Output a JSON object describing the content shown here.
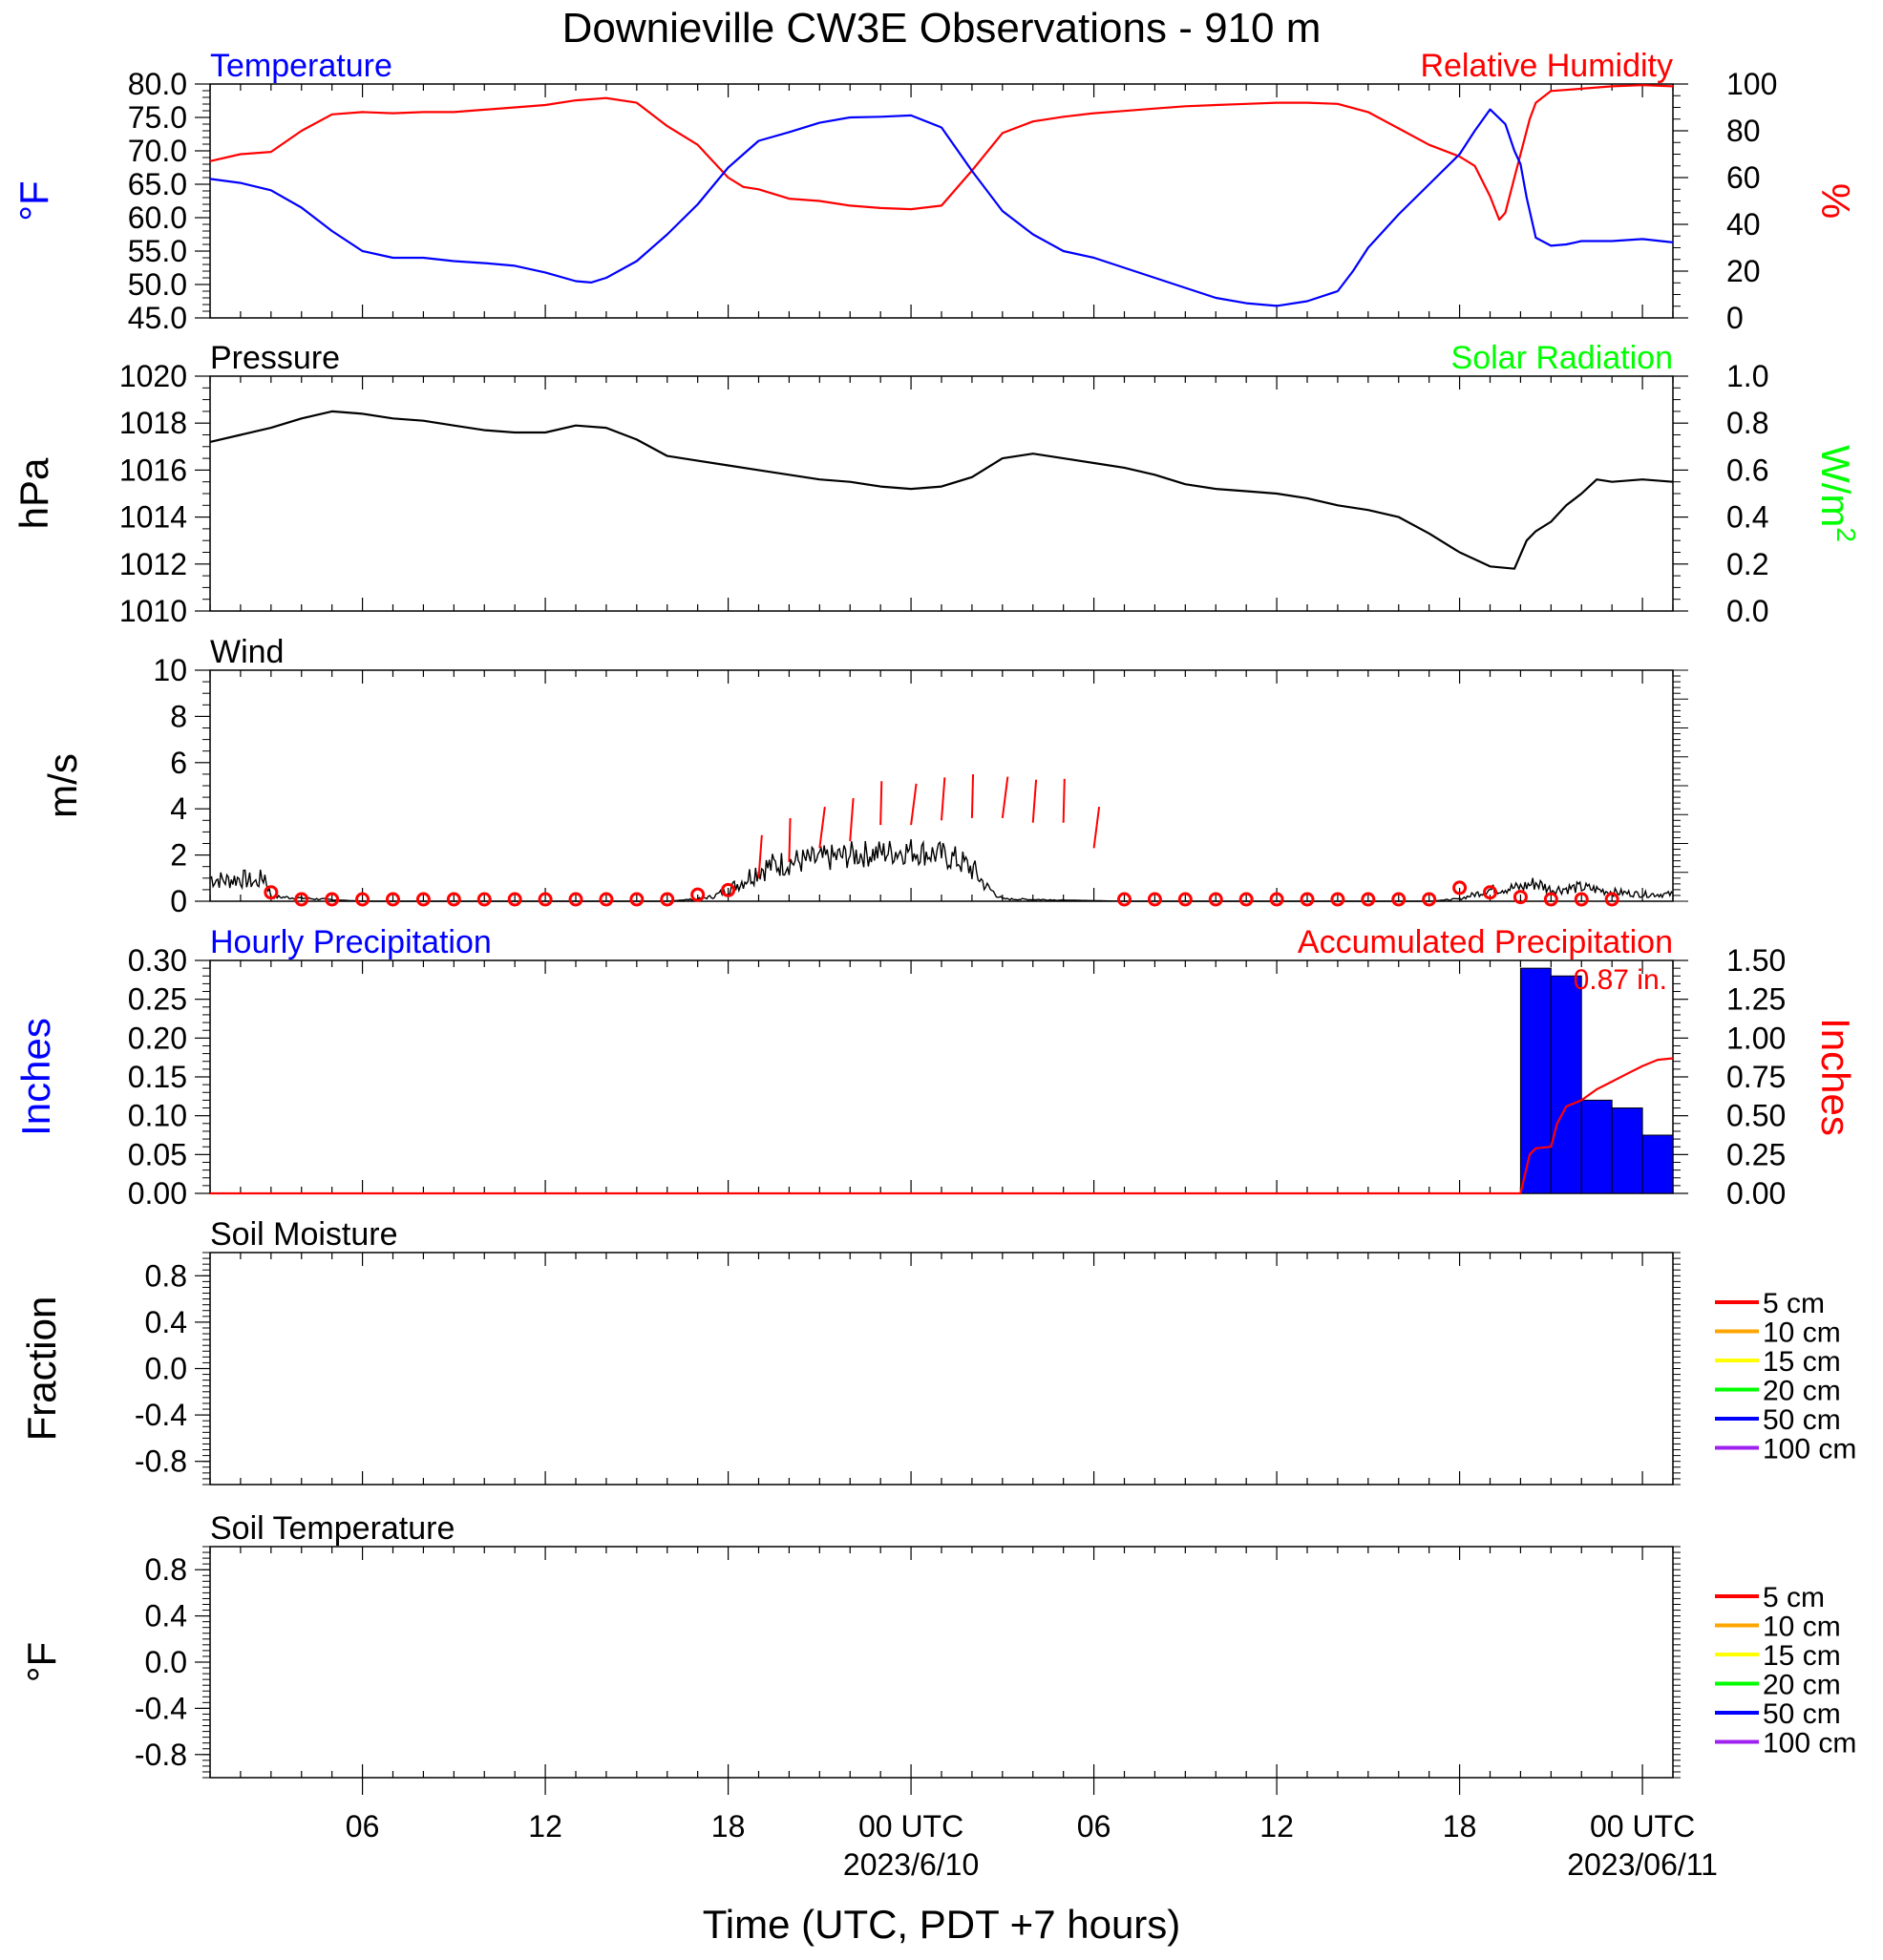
{
  "title": "Downieville CW3E Observations - 910 m",
  "xlabel": "Time (UTC, PDT +7 hours)",
  "x_axis": {
    "range_hours": [
      0,
      48
    ],
    "ticks": [
      {
        "t": 5,
        "label": "06",
        "sub": ""
      },
      {
        "t": 11,
        "label": "12",
        "sub": ""
      },
      {
        "t": 17,
        "label": "18",
        "sub": ""
      },
      {
        "t": 23,
        "label": "00 UTC",
        "sub": "2023/6/10"
      },
      {
        "t": 29,
        "label": "06",
        "sub": ""
      },
      {
        "t": 35,
        "label": "12",
        "sub": ""
      },
      {
        "t": 41,
        "label": "18",
        "sub": ""
      },
      {
        "t": 47,
        "label": "00 UTC",
        "sub": "2023/06/11"
      }
    ]
  },
  "colors": {
    "temperature": "#0000ff",
    "humidity": "#ff0000",
    "pressure": "#000000",
    "solar": "#00ff00",
    "wind": "#000000",
    "wind_marker": "#ff0000",
    "hourly_precip": "#0000ff",
    "accum_precip": "#ff0000"
  },
  "chart_data": [
    {
      "type": "line",
      "panel": "temperature-humidity",
      "left_title": "Temperature",
      "right_title": "Relative Humidity",
      "ylabel_left": "°F",
      "ylabel_right": "%",
      "ylim_left": [
        45,
        80
      ],
      "ylim_right": [
        0,
        100
      ],
      "yticks_left": [
        "80.0",
        "75.0",
        "70.0",
        "65.0",
        "60.0",
        "55.0",
        "50.0",
        "45.0"
      ],
      "yticks_right": [
        "100",
        "80",
        "60",
        "40",
        "20",
        "0"
      ],
      "series": [
        {
          "name": "Temperature",
          "axis": "left",
          "x": [
            0,
            1,
            2,
            3,
            4,
            5,
            6,
            7,
            8,
            9,
            10,
            11,
            12,
            12.5,
            13,
            14,
            15,
            16,
            17,
            17.5,
            18,
            19,
            20,
            21,
            22,
            23,
            24,
            25,
            26,
            27,
            28,
            29,
            30,
            31,
            32,
            33,
            34,
            35,
            36,
            37,
            37.5,
            38,
            39,
            40,
            41,
            41.5,
            42,
            42.5,
            42.8,
            43,
            43.2,
            43.5,
            44,
            44.5,
            45,
            46,
            47,
            48
          ],
          "y": [
            65.8,
            65.2,
            64.1,
            61.5,
            58.0,
            55.0,
            54.0,
            54.0,
            53.5,
            53.2,
            52.8,
            51.8,
            50.5,
            50.3,
            51.0,
            53.5,
            57.5,
            62.0,
            67.5,
            69.5,
            71.5,
            72.8,
            74.2,
            75.0,
            75.1,
            75.3,
            73.5,
            67.0,
            61.0,
            57.5,
            55.0,
            54.0,
            52.5,
            51.0,
            49.5,
            48.0,
            47.2,
            46.8,
            47.5,
            49.0,
            52.0,
            55.5,
            60.5,
            65.0,
            69.5,
            73.0,
            76.2,
            74.0,
            70.0,
            68.0,
            63.0,
            57.0,
            55.8,
            56.0,
            56.5,
            56.5,
            56.8,
            56.3
          ]
        },
        {
          "name": "Relative Humidity",
          "axis": "right",
          "x": [
            0,
            1,
            2,
            3,
            4,
            5,
            6,
            7,
            8,
            9,
            10,
            11,
            12,
            13,
            14,
            15,
            16,
            17,
            17.5,
            18,
            19,
            20,
            21,
            22,
            23,
            24,
            25,
            26,
            27,
            28,
            29,
            30,
            31,
            32,
            33,
            34,
            35,
            36,
            37,
            38,
            39,
            40,
            41,
            41.5,
            42,
            42.3,
            42.5,
            42.8,
            43,
            43.3,
            43.5,
            44,
            45,
            46,
            47,
            48
          ],
          "y": [
            67,
            70,
            71,
            80,
            87,
            88,
            87.5,
            88,
            88,
            89,
            90,
            91,
            93,
            94,
            92,
            82,
            74,
            60,
            56,
            55,
            51,
            50,
            48,
            47,
            46.5,
            48,
            63,
            79,
            84,
            86,
            87.5,
            88.5,
            89.5,
            90.5,
            91,
            91.5,
            92,
            92,
            91.5,
            88,
            81,
            74,
            69,
            65,
            52,
            42,
            45,
            60,
            70,
            85,
            92,
            97,
            98,
            99,
            99.5,
            99
          ]
        }
      ]
    },
    {
      "type": "line",
      "panel": "pressure",
      "left_title": "Pressure",
      "right_title": "Solar Radiation",
      "ylabel_left": "hPa",
      "ylabel_right": "W/m",
      "ylabel_right_sup": "2",
      "ylim_left": [
        1010,
        1020
      ],
      "ylim_right": [
        0,
        1
      ],
      "yticks_left": [
        "1020",
        "1018",
        "1016",
        "1014",
        "1012",
        "1010"
      ],
      "yticks_right": [
        "1.0",
        "0.8",
        "0.6",
        "0.4",
        "0.2",
        "0.0"
      ],
      "series": [
        {
          "name": "Pressure",
          "axis": "left",
          "x": [
            0,
            1,
            2,
            3,
            4,
            5,
            6,
            7,
            8,
            9,
            10,
            11,
            12,
            13,
            14,
            15,
            16,
            17,
            18,
            19,
            20,
            21,
            22,
            23,
            24,
            25,
            26,
            27,
            28,
            29,
            30,
            31,
            32,
            33,
            34,
            35,
            36,
            37,
            38,
            39,
            40,
            41,
            42,
            42.8,
            43.2,
            43.5,
            44,
            44.5,
            45,
            45.5,
            46,
            47,
            48
          ],
          "y": [
            1017.2,
            1017.5,
            1017.8,
            1018.2,
            1018.5,
            1018.4,
            1018.2,
            1018.1,
            1017.9,
            1017.7,
            1017.6,
            1017.6,
            1017.9,
            1017.8,
            1017.3,
            1016.6,
            1016.4,
            1016.2,
            1016.0,
            1015.8,
            1015.6,
            1015.5,
            1015.3,
            1015.2,
            1015.3,
            1015.7,
            1016.5,
            1016.7,
            1016.5,
            1016.3,
            1016.1,
            1015.8,
            1015.4,
            1015.2,
            1015.1,
            1015.0,
            1014.8,
            1014.5,
            1014.3,
            1014.0,
            1013.3,
            1012.5,
            1011.9,
            1011.8,
            1013.0,
            1013.4,
            1013.8,
            1014.5,
            1015.0,
            1015.6,
            1015.5,
            1015.6,
            1015.5
          ]
        }
      ]
    },
    {
      "type": "line",
      "panel": "wind",
      "left_title": "Wind",
      "ylabel_left": "m/s",
      "ylim_left": [
        0,
        10
      ],
      "yticks_left": [
        "10",
        "8",
        "6",
        "4",
        "2",
        "0"
      ],
      "series": [
        {
          "name": "Wind",
          "axis": "left",
          "x": [
            0,
            0.5,
            1,
            1.5,
            1.8,
            2,
            5,
            10,
            15,
            16,
            16.5,
            17,
            17.5,
            18,
            19,
            20,
            21,
            22,
            23,
            24,
            24.5,
            25,
            25.5,
            26,
            30,
            35,
            40,
            41,
            41.5,
            42,
            43,
            43.5,
            44,
            45,
            46,
            47,
            48
          ],
          "y": [
            1.0,
            0.9,
            1.0,
            0.8,
            1.1,
            0.2,
            0,
            0,
            0,
            0.1,
            0.2,
            0.5,
            0.9,
            1.4,
            1.7,
            1.8,
            2.0,
            2.1,
            2.2,
            2.0,
            1.8,
            1.4,
            0.6,
            0.1,
            0,
            0,
            0,
            0.1,
            0.3,
            0.5,
            0.6,
            0.8,
            0.5,
            0.6,
            0.4,
            0.3,
            0.3
          ]
        }
      ],
      "hourly_markers": {
        "x": [
          2,
          3,
          4,
          5,
          6,
          7,
          8,
          9,
          10,
          11,
          12,
          13,
          14,
          15,
          16,
          17,
          18,
          19,
          20,
          21,
          22,
          23,
          24,
          25,
          26,
          27,
          28,
          29,
          30,
          31,
          32,
          33,
          34,
          35,
          36,
          37,
          38,
          39,
          40,
          41,
          42,
          43,
          44,
          45,
          46
        ],
        "speed": [
          0.3,
          0,
          0,
          0,
          0,
          0,
          0,
          0,
          0,
          0,
          0,
          0,
          0,
          0,
          0.2,
          0.4,
          1.0,
          1.7,
          2.3,
          2.6,
          3.3,
          3.3,
          3.5,
          3.6,
          3.6,
          3.4,
          3.4,
          2.3,
          0,
          0,
          0,
          0,
          0,
          0,
          0,
          0,
          0,
          0,
          0,
          0.5,
          0.3,
          0.1,
          0,
          0,
          0
        ]
      }
    },
    {
      "type": "bar",
      "panel": "precipitation",
      "left_title": "Hourly Precipitation",
      "right_title": "Accumulated Precipitation",
      "ylabel_left": "Inches",
      "ylabel_right": "Inches",
      "ylim_left": [
        0,
        0.3
      ],
      "ylim_right": [
        0,
        1.5
      ],
      "yticks_left": [
        "0.30",
        "0.25",
        "0.20",
        "0.15",
        "0.10",
        "0.05",
        "0.00"
      ],
      "yticks_right": [
        "1.50",
        "1.25",
        "1.00",
        "0.75",
        "0.50",
        "0.25",
        "0.00"
      ],
      "annotation": "0.87 in.",
      "bars": {
        "name": "Hourly Precipitation",
        "x": [
          43,
          44,
          45,
          46,
          47
        ],
        "values": [
          0.29,
          0.28,
          0.12,
          0.11,
          0.075
        ]
      },
      "series": [
        {
          "name": "Accumulated Precipitation",
          "axis": "right",
          "x": [
            0,
            43,
            43.3,
            43.5,
            44,
            44.2,
            44.5,
            45,
            45.5,
            46,
            46.5,
            47,
            47.5,
            48
          ],
          "y": [
            0,
            0,
            0.25,
            0.29,
            0.3,
            0.45,
            0.56,
            0.6,
            0.67,
            0.72,
            0.77,
            0.82,
            0.86,
            0.87
          ]
        }
      ]
    },
    {
      "type": "line",
      "panel": "soil-moisture",
      "left_title": "Soil Moisture",
      "ylabel_left": "Fraction",
      "ylim_left": [
        -1,
        1
      ],
      "yticks_left": [
        "0.8",
        "0.4",
        "0.0",
        "-0.4",
        "-0.8"
      ],
      "legend": [
        "5 cm",
        "10 cm",
        "15 cm",
        "20 cm",
        "50 cm",
        "100 cm"
      ],
      "series": []
    },
    {
      "type": "line",
      "panel": "soil-temperature",
      "left_title": "Soil Temperature",
      "ylabel_left": "°F",
      "ylim_left": [
        -1,
        1
      ],
      "yticks_left": [
        "0.8",
        "0.4",
        "0.0",
        "-0.4",
        "-0.8"
      ],
      "legend": [
        "5 cm",
        "10 cm",
        "15 cm",
        "20 cm",
        "50 cm",
        "100 cm"
      ],
      "series": []
    }
  ],
  "legend_colors": [
    "#ff0000",
    "#ffa500",
    "#ffff00",
    "#00ff00",
    "#0000ff",
    "#a020f0"
  ]
}
